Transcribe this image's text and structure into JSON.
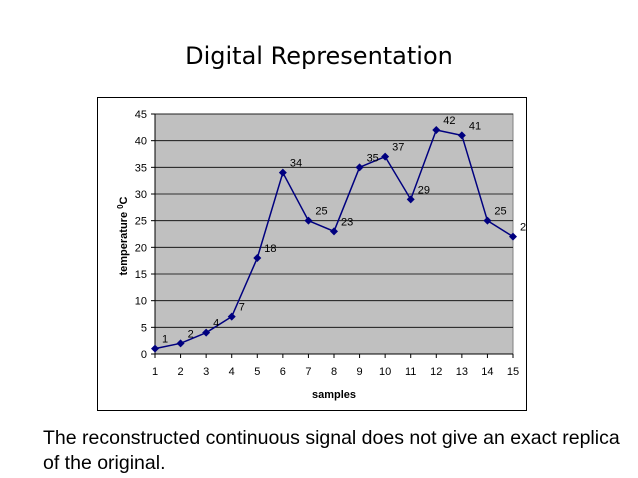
{
  "slide": {
    "title": "Digital Representation",
    "caption": "The reconstructed continuous signal does not give an exact replica of the original."
  },
  "chart_data": {
    "type": "line",
    "title": "",
    "xlabel": "samples",
    "ylabel": "temperature",
    "ylabel_unit": "0C",
    "x": [
      1,
      2,
      3,
      4,
      5,
      6,
      7,
      8,
      9,
      10,
      11,
      12,
      13,
      14,
      15
    ],
    "series": [
      {
        "values": [
          1,
          2,
          4,
          7,
          18,
          34,
          25,
          23,
          35,
          37,
          29,
          42,
          41,
          25,
          22
        ]
      }
    ],
    "ylim": [
      0,
      45
    ],
    "yticks": [
      0,
      5,
      10,
      15,
      20,
      25,
      30,
      35,
      40,
      45
    ],
    "grid": true,
    "legend": "none",
    "colors": {
      "line": "#00007f",
      "plot_bg": "#c0c0c0",
      "grid": "#000000"
    }
  }
}
